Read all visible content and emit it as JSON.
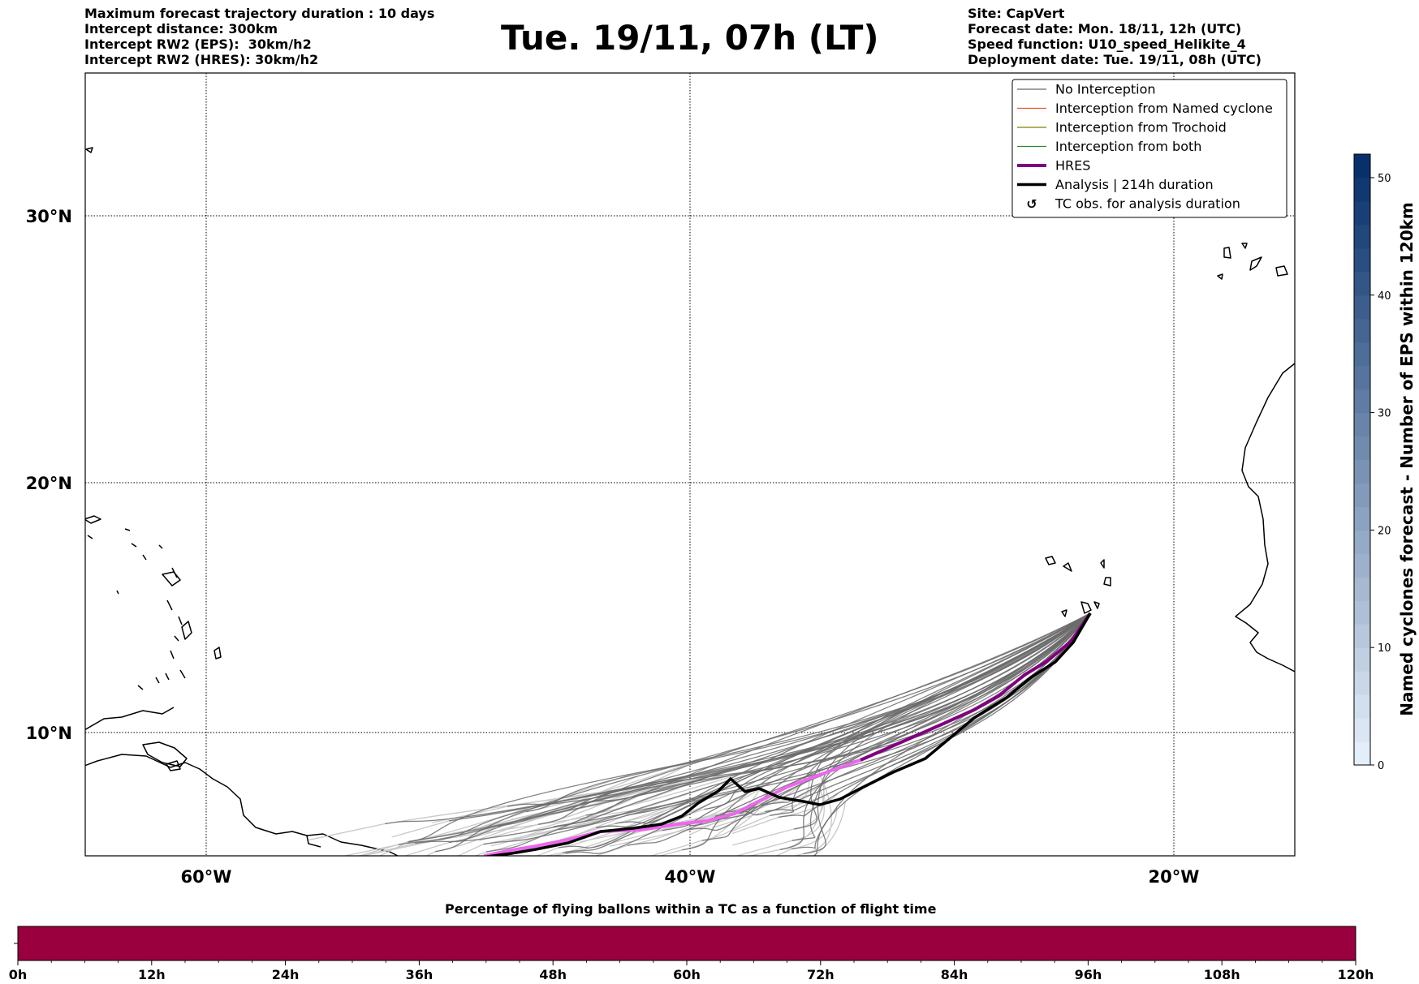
{
  "header": {
    "left_lines": [
      "Maximum forecast trajectory duration : 10 days",
      "Intercept distance: 300km",
      "Intercept RW2 (EPS):  30km/h2",
      "Intercept RW2 (HRES): 30km/h2"
    ],
    "title": "Tue. 19/11, 07h (LT)",
    "right_lines": [
      "Site: CapVert",
      "Forecast date: Mon. 18/11, 12h (UTC)",
      "Speed function: U10_speed_Helikite_4",
      "Deployment date: Tue. 19/11, 08h (UTC)"
    ]
  },
  "map": {
    "lon_labels": [
      "60°W",
      "40°W",
      "20°W"
    ],
    "lat_labels": [
      "30°N",
      "20°N",
      "10°N"
    ],
    "extent": {
      "lon": [
        -65,
        -15
      ],
      "lat": [
        5.4,
        34.7
      ]
    },
    "site": {
      "name": "CapVert",
      "lon": -23.4,
      "lat": 14.8
    },
    "colors": {
      "no_interception": "#6b6b6b",
      "no_interception_late": "#c8c8c8",
      "named_cyclone": "#e8572a",
      "trochoid": "#808000",
      "both": "#2e8b2e",
      "hres": "#800080",
      "hres_late": "#ee66ee",
      "analysis": "#000000"
    }
  },
  "legend": {
    "items": [
      {
        "label": "No Interception",
        "style": "no"
      },
      {
        "label": "Interception from Named cyclone",
        "style": "named"
      },
      {
        "label": "Interception from Trochoid",
        "style": "troch"
      },
      {
        "label": "Interception from both",
        "style": "both"
      },
      {
        "label": "HRES",
        "style": "hres"
      },
      {
        "label": "Analysis | 214h duration",
        "style": "analysis"
      },
      {
        "label": "TC obs. for analysis duration",
        "style": "tc"
      }
    ]
  },
  "colorbar": {
    "label": "Named cyclones forecast - Number of EPS within 120km",
    "ticks": [
      "0",
      "10",
      "20",
      "30",
      "40",
      "50"
    ],
    "min": 0,
    "max": 52,
    "color_light": "#e3eef9",
    "color_dark": "#08306b"
  },
  "timeline": {
    "title": "Percentage of flying ballons within a TC as a function of flight time",
    "ticks": [
      "0h",
      "12h",
      "24h",
      "36h",
      "48h",
      "60h",
      "72h",
      "84h",
      "96h",
      "108h",
      "120h"
    ],
    "bar_color": "#99003d",
    "percent": 100
  }
}
